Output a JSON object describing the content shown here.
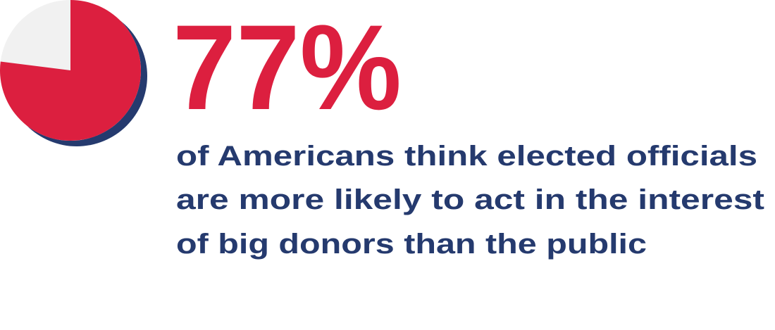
{
  "chart_data": {
    "type": "pie",
    "values": [
      77
    ],
    "value_labels": [
      "77%"
    ],
    "color": "#dc1f3f",
    "rest_color": "#f1f1f1",
    "shadow_color": "#253a6e",
    "caption": [
      "of Americans think elected officials",
      "are more likely to act in the interest",
      "of big donors than the public"
    ]
  }
}
